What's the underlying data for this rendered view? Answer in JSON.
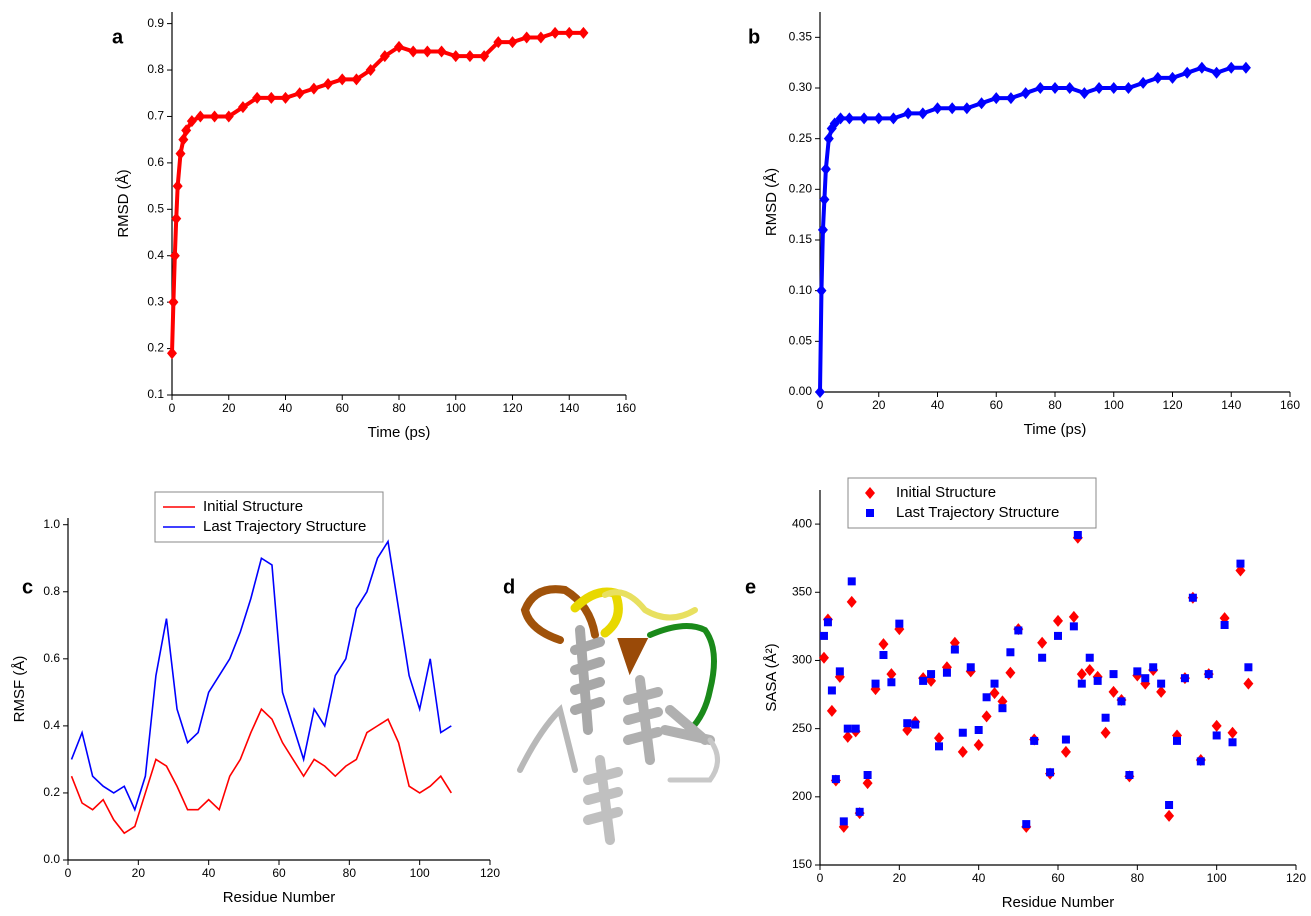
{
  "chart_data": [
    {
      "type": "line",
      "panel": "a",
      "x_label": "Time (ps)",
      "y_label": "RMSD (Å)",
      "x": [
        0,
        0.5,
        1,
        1.5,
        2,
        3,
        4,
        5,
        7,
        10,
        15,
        20,
        25,
        30,
        35,
        40,
        45,
        50,
        55,
        60,
        65,
        70,
        75,
        80,
        85,
        90,
        95,
        100,
        105,
        110,
        115,
        120,
        125,
        130,
        135,
        140,
        145
      ],
      "series": [
        {
          "color": "#ff0000",
          "marker": "diamond",
          "values": [
            0.19,
            0.3,
            0.4,
            0.48,
            0.55,
            0.62,
            0.65,
            0.67,
            0.69,
            0.7,
            0.7,
            0.7,
            0.72,
            0.74,
            0.74,
            0.74,
            0.75,
            0.76,
            0.77,
            0.78,
            0.78,
            0.8,
            0.83,
            0.85,
            0.84,
            0.84,
            0.84,
            0.83,
            0.83,
            0.83,
            0.86,
            0.86,
            0.87,
            0.87,
            0.88,
            0.88,
            0.88
          ]
        }
      ],
      "xlim": [
        0,
        160
      ],
      "xticks": [
        0,
        20,
        40,
        60,
        80,
        100,
        120,
        140,
        160
      ],
      "ylim": [
        0.1,
        0.925
      ],
      "yticks": [
        0.1,
        0.2,
        0.3,
        0.4,
        0.5,
        0.6,
        0.7,
        0.8,
        0.9
      ]
    },
    {
      "type": "line",
      "panel": "b",
      "x_label": "Time (ps)",
      "y_label": "RMSD (Å)",
      "x": [
        0,
        0.5,
        1,
        1.5,
        2,
        3,
        4,
        5,
        7,
        10,
        15,
        20,
        25,
        30,
        35,
        40,
        45,
        50,
        55,
        60,
        65,
        70,
        75,
        80,
        85,
        90,
        95,
        100,
        105,
        110,
        115,
        120,
        125,
        130,
        135,
        140,
        145
      ],
      "series": [
        {
          "color": "#0000ff",
          "marker": "diamond",
          "values": [
            0,
            0.1,
            0.16,
            0.19,
            0.22,
            0.25,
            0.26,
            0.265,
            0.27,
            0.27,
            0.27,
            0.27,
            0.27,
            0.275,
            0.275,
            0.28,
            0.28,
            0.28,
            0.285,
            0.29,
            0.29,
            0.295,
            0.3,
            0.3,
            0.3,
            0.295,
            0.3,
            0.3,
            0.3,
            0.305,
            0.31,
            0.31,
            0.315,
            0.32,
            0.315,
            0.32,
            0.32
          ]
        }
      ],
      "xlim": [
        0,
        160
      ],
      "xticks": [
        0,
        20,
        40,
        60,
        80,
        100,
        120,
        140,
        160
      ],
      "ylim": [
        0,
        0.375
      ],
      "yticks": [
        {
          "value": 0,
          "label": "0.00"
        },
        0.05,
        {
          "value": 0.1,
          "label": "0.10"
        },
        0.15,
        {
          "value": 0.2,
          "label": "0.20"
        },
        0.25,
        {
          "value": 0.3,
          "label": "0.30"
        },
        0.35
      ]
    },
    {
      "type": "line",
      "panel": "c",
      "x_label": "Residue Number",
      "y_label": "RMSF (Å)",
      "legend": "upper center",
      "x": [
        1,
        4,
        7,
        10,
        13,
        16,
        19,
        22,
        25,
        28,
        31,
        34,
        37,
        40,
        43,
        46,
        49,
        52,
        55,
        58,
        61,
        64,
        67,
        70,
        73,
        76,
        79,
        82,
        85,
        88,
        91,
        94,
        97,
        100,
        103,
        106,
        109
      ],
      "series": [
        {
          "name": "Initial Structure",
          "color": "#ff0000",
          "values": [
            0.25,
            0.17,
            0.15,
            0.18,
            0.12,
            0.08,
            0.1,
            0.2,
            0.3,
            0.28,
            0.22,
            0.15,
            0.15,
            0.18,
            0.15,
            0.25,
            0.3,
            0.38,
            0.45,
            0.42,
            0.35,
            0.3,
            0.25,
            0.3,
            0.28,
            0.25,
            0.28,
            0.3,
            0.38,
            0.4,
            0.42,
            0.35,
            0.22,
            0.2,
            0.22,
            0.25,
            0.2
          ]
        },
        {
          "name": "Last Trajectory Structure",
          "color": "#0000ff",
          "values": [
            0.3,
            0.38,
            0.25,
            0.22,
            0.2,
            0.22,
            0.15,
            0.25,
            0.55,
            0.72,
            0.45,
            0.35,
            0.38,
            0.5,
            0.55,
            0.6,
            0.68,
            0.78,
            0.9,
            0.88,
            0.5,
            0.4,
            0.3,
            0.45,
            0.4,
            0.55,
            0.6,
            0.75,
            0.8,
            0.9,
            0.95,
            0.75,
            0.55,
            0.45,
            0.6,
            0.38,
            0.4
          ]
        }
      ],
      "xlim": [
        0,
        120
      ],
      "xticks": [
        0,
        20,
        40,
        60,
        80,
        100,
        120
      ],
      "ylim": [
        0,
        1.02
      ],
      "yticks": [
        {
          "value": 0,
          "label": "0.0"
        },
        0.2,
        0.4,
        0.6,
        0.8,
        {
          "value": 1,
          "label": "1.0"
        }
      ]
    },
    {
      "type": "scatter",
      "panel": "e",
      "x_label": "Residue Number",
      "y_label": "SASA (Å²)",
      "legend": "upper left",
      "x": [
        1,
        2,
        3,
        4,
        5,
        6,
        7,
        8,
        9,
        10,
        12,
        14,
        16,
        18,
        20,
        22,
        24,
        26,
        28,
        30,
        32,
        34,
        36,
        38,
        40,
        42,
        44,
        46,
        48,
        50,
        52,
        54,
        56,
        58,
        60,
        62,
        64,
        65,
        66,
        68,
        70,
        72,
        74,
        76,
        78,
        80,
        82,
        84,
        86,
        88,
        90,
        92,
        94,
        96,
        98,
        100,
        102,
        104,
        106,
        108
      ],
      "series": [
        {
          "name": "Initial Structure",
          "color": "#ff0000",
          "marker": "diamond",
          "values": [
            302,
            330,
            263,
            212,
            288,
            178,
            244,
            343,
            248,
            188,
            210,
            279,
            312,
            290,
            323,
            249,
            255,
            287,
            285,
            243,
            295,
            313,
            233,
            292,
            238,
            259,
            276,
            270,
            291,
            323,
            178,
            242,
            313,
            217,
            329,
            233,
            332,
            390,
            290,
            293,
            288,
            247,
            277,
            271,
            215,
            289,
            283,
            293,
            277,
            186,
            245,
            287,
            346,
            227,
            290,
            252,
            331,
            247,
            366,
            283
          ]
        },
        {
          "name": "Last Trajectory Structure",
          "color": "#0000ff",
          "marker": "square",
          "values": [
            318,
            328,
            278,
            213,
            292,
            182,
            250,
            358,
            250,
            189,
            216,
            283,
            304,
            284,
            327,
            254,
            253,
            285,
            290,
            237,
            291,
            308,
            247,
            295,
            249,
            273,
            283,
            265,
            306,
            322,
            180,
            241,
            302,
            218,
            318,
            242,
            325,
            392,
            283,
            302,
            285,
            258,
            290,
            270,
            216,
            292,
            287,
            295,
            283,
            194,
            241,
            287,
            346,
            226,
            290,
            245,
            326,
            240,
            371,
            295
          ]
        }
      ],
      "xlim": [
        0,
        120
      ],
      "xticks": [
        0,
        20,
        40,
        60,
        80,
        100,
        120
      ],
      "ylim": [
        150,
        425
      ],
      "yticks": [
        150,
        200,
        250,
        300,
        350,
        400
      ]
    }
  ],
  "structure_panel": {
    "label": "d"
  }
}
